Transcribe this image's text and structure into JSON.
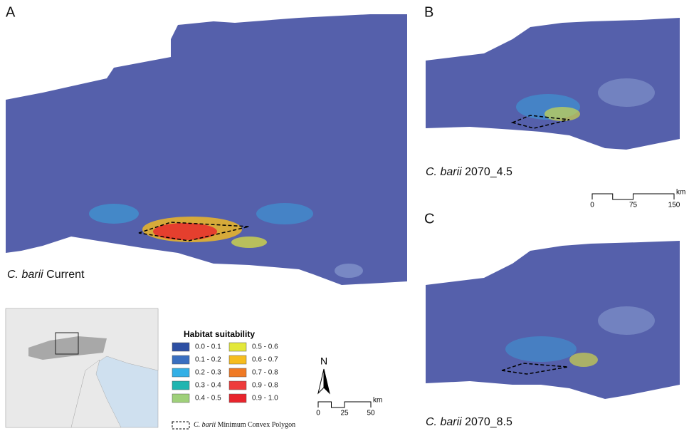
{
  "panels": [
    {
      "letter": "A",
      "species": "C. barii",
      "scenario": "Current"
    },
    {
      "letter": "B",
      "species": "C. barii",
      "scenario": "2070_4.5"
    },
    {
      "letter": "C",
      "species": "C. barii",
      "scenario": "2070_8.5"
    }
  ],
  "legend": {
    "title": "Habitat suitability",
    "items": [
      {
        "label": "0.0 - 0.1",
        "color": "#2d4fa3"
      },
      {
        "label": "0.1 - 0.2",
        "color": "#3a6fc0"
      },
      {
        "label": "0.2 - 0.3",
        "color": "#33b0e6"
      },
      {
        "label": "0.3 - 0.4",
        "color": "#20b5b0"
      },
      {
        "label": "0.4 - 0.5",
        "color": "#9fd07a"
      },
      {
        "label": "0.5 - 0.6",
        "color": "#e3e83a"
      },
      {
        "label": "0.6 - 0.7",
        "color": "#f6bd1e"
      },
      {
        "label": "0.7 - 0.8",
        "color": "#f07a24"
      },
      {
        "label": "0.9 - 0.8",
        "color": "#ee3b3b"
      },
      {
        "label": "0.9 - 1.0",
        "color": "#e8242c"
      }
    ]
  },
  "polygon_note": {
    "species": "C. barii",
    "text": "Minimum Convex Polygon"
  },
  "north": "N",
  "scale_main": {
    "ticks": [
      "0",
      "25",
      "50"
    ],
    "unit": "km"
  },
  "scale_side": {
    "ticks": [
      "0",
      "75",
      "150"
    ],
    "unit": "km"
  }
}
